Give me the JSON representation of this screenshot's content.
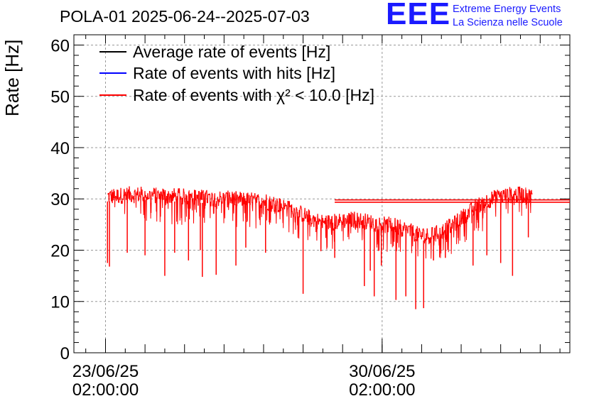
{
  "header": {
    "title": "POLA-01 2025-06-24--2025-07-03",
    "logo_text": "EEE",
    "logo_line1": "Extreme Energy Events",
    "logo_line2": "La Scienza nelle Scuole"
  },
  "chart_data": {
    "type": "line",
    "title": "POLA-01 2025-06-24--2025-07-03",
    "ylabel": "Rate [Hz]",
    "xlabel": "",
    "ylim": [
      0,
      62
    ],
    "y_ticks": [
      0,
      10,
      20,
      30,
      40,
      50,
      60
    ],
    "x_ticks": [
      {
        "date": "23/06/25",
        "time": "02:00:00",
        "day": 0
      },
      {
        "date": "30/06/25",
        "time": "02:00:00",
        "day": 7
      }
    ],
    "xlim_days": [
      -0.8,
      11.75
    ],
    "grid": true,
    "legend_position": "top-left",
    "legend": [
      {
        "label": "Average rate of events [Hz]",
        "color": "#000000"
      },
      {
        "label": "Rate of events with hits [Hz]",
        "color": "#0000ff"
      },
      {
        "label": "Rate of events with χ² < 10.0 [Hz]",
        "color": "#ff0000"
      }
    ],
    "series": [
      {
        "name": "Rate of events with χ² < 10.0 [Hz]",
        "color": "#ff0000",
        "x_days": [
          0.25,
          0.5,
          1.0,
          1.5,
          2.0,
          2.5,
          3.0,
          3.5,
          4.0,
          4.3,
          4.6,
          4.9,
          5.2,
          5.5,
          5.9,
          6.3,
          6.7,
          7.0,
          7.3,
          7.6,
          7.9,
          8.2,
          8.5,
          8.8,
          9.1,
          9.4,
          9.7,
          10.0,
          10.3,
          10.6,
          10.8
        ],
        "values": [
          30.5,
          30.8,
          30.8,
          30.6,
          30.4,
          30.2,
          30.0,
          29.8,
          29.5,
          29.0,
          28.2,
          27.3,
          26.2,
          25.3,
          25.6,
          26.0,
          25.4,
          25.0,
          24.8,
          24.0,
          23.0,
          22.8,
          23.6,
          25.0,
          26.8,
          28.6,
          29.8,
          30.5,
          30.8,
          30.7,
          30.4
        ],
        "dips": [
          {
            "x_day": 0.05,
            "value": 17.5
          },
          {
            "x_day": 0.1,
            "value": 16.8
          },
          {
            "x_day": 0.55,
            "value": 19.5
          },
          {
            "x_day": 1.0,
            "value": 19.0
          },
          {
            "x_day": 1.5,
            "value": 15.0
          },
          {
            "x_day": 1.75,
            "value": 19.5
          },
          {
            "x_day": 2.1,
            "value": 18.0
          },
          {
            "x_day": 2.4,
            "value": 20.0
          },
          {
            "x_day": 2.45,
            "value": 14.8
          },
          {
            "x_day": 2.8,
            "value": 15.2
          },
          {
            "x_day": 3.3,
            "value": 17.0
          },
          {
            "x_day": 3.55,
            "value": 20.5
          },
          {
            "x_day": 4.05,
            "value": 19.5
          },
          {
            "x_day": 5.0,
            "value": 11.5
          },
          {
            "x_day": 5.8,
            "value": 18.5
          },
          {
            "x_day": 5.45,
            "value": 19.8
          },
          {
            "x_day": 6.55,
            "value": 13.0
          },
          {
            "x_day": 6.7,
            "value": 16.0
          },
          {
            "x_day": 6.8,
            "value": 11.0
          },
          {
            "x_day": 6.98,
            "value": 17.0
          },
          {
            "x_day": 7.35,
            "value": 10.3
          },
          {
            "x_day": 7.6,
            "value": 11.0
          },
          {
            "x_day": 7.85,
            "value": 8.5
          },
          {
            "x_day": 8.05,
            "value": 8.7
          },
          {
            "x_day": 8.3,
            "value": 18.0
          },
          {
            "x_day": 8.6,
            "value": 18.5
          },
          {
            "x_day": 9.3,
            "value": 17.0
          },
          {
            "x_day": 9.65,
            "value": 19.0
          },
          {
            "x_day": 10.0,
            "value": 17.5
          },
          {
            "x_day": 10.3,
            "value": 15.0
          },
          {
            "x_day": 10.7,
            "value": 22.5
          }
        ],
        "average": 29.6
      }
    ],
    "average_lines": [
      {
        "name": "Average rate of events [Hz]",
        "value": 29.8,
        "color": "#ff0000"
      },
      {
        "name": "Rate of events with χ² < 10.0 [Hz]",
        "value": 29.35,
        "color": "#ff0000"
      }
    ]
  }
}
